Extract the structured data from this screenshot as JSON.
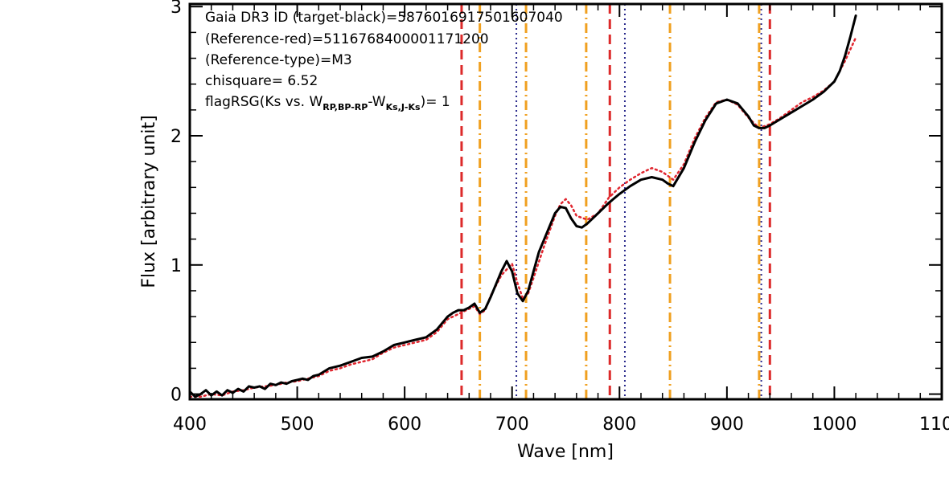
{
  "chart_data": {
    "type": "line",
    "xlabel": "Wave [nm]",
    "ylabel": "Flux [arbitrary unit]",
    "xlim": [
      400,
      1100
    ],
    "ylim": [
      -0.04,
      3.02
    ],
    "x_ticks": [
      400,
      500,
      600,
      700,
      800,
      900,
      1000,
      1100
    ],
    "x_tick_labels": [
      "400",
      "500",
      "600",
      "700",
      "800",
      "900",
      "1000",
      "1100"
    ],
    "y_ticks": [
      0,
      1,
      2,
      3
    ],
    "y_tick_labels": [
      "0",
      "1",
      "2",
      "3"
    ],
    "annotations": {
      "line1": "Gaia DR3 ID (target-black)=5876016917501607040",
      "line2": "(Reference-red)=5116768400001171200",
      "line3": "(Reference-type)=M3",
      "line4": "chisquare= 6.52",
      "line5_prefix": "flagRSG(Ks vs. W",
      "line5_sub1": "RP,BP-RP",
      "line5_mid": "-W",
      "line5_sub2": "Ks,J-Ks",
      "line5_suffix": ")= 1"
    },
    "series": [
      {
        "style": "solid",
        "color": "#000000",
        "x": [
          400,
          405,
          410,
          415,
          420,
          425,
          430,
          435,
          440,
          445,
          450,
          455,
          460,
          465,
          470,
          475,
          480,
          485,
          490,
          495,
          500,
          505,
          510,
          515,
          520,
          530,
          540,
          550,
          560,
          570,
          580,
          590,
          600,
          610,
          620,
          630,
          640,
          645,
          650,
          655,
          660,
          665,
          670,
          675,
          680,
          685,
          690,
          695,
          700,
          705,
          710,
          715,
          720,
          725,
          730,
          740,
          745,
          750,
          755,
          760,
          765,
          770,
          775,
          780,
          790,
          800,
          810,
          820,
          830,
          840,
          845,
          850,
          860,
          870,
          880,
          890,
          900,
          910,
          920,
          925,
          930,
          935,
          940,
          950,
          960,
          970,
          980,
          990,
          1000,
          1005,
          1010,
          1015,
          1020
        ],
        "y": [
          0.02,
          -0.02,
          0.0,
          0.03,
          -0.01,
          0.02,
          -0.01,
          0.03,
          0.01,
          0.04,
          0.02,
          0.06,
          0.05,
          0.06,
          0.04,
          0.08,
          0.07,
          0.09,
          0.08,
          0.1,
          0.11,
          0.12,
          0.11,
          0.14,
          0.15,
          0.2,
          0.22,
          0.25,
          0.28,
          0.29,
          0.33,
          0.38,
          0.4,
          0.42,
          0.44,
          0.5,
          0.6,
          0.63,
          0.65,
          0.65,
          0.67,
          0.7,
          0.63,
          0.66,
          0.75,
          0.85,
          0.95,
          1.03,
          0.95,
          0.78,
          0.72,
          0.8,
          0.95,
          1.1,
          1.2,
          1.4,
          1.45,
          1.44,
          1.36,
          1.3,
          1.29,
          1.32,
          1.36,
          1.4,
          1.48,
          1.55,
          1.61,
          1.66,
          1.68,
          1.66,
          1.63,
          1.61,
          1.75,
          1.95,
          2.12,
          2.25,
          2.28,
          2.25,
          2.15,
          2.08,
          2.06,
          2.06,
          2.08,
          2.13,
          2.18,
          2.23,
          2.28,
          2.34,
          2.42,
          2.5,
          2.62,
          2.77,
          2.93
        ]
      },
      {
        "style": "dotted",
        "color": "#e0262f",
        "x": [
          400,
          410,
          420,
          430,
          440,
          450,
          460,
          470,
          480,
          490,
          500,
          510,
          520,
          530,
          540,
          550,
          560,
          570,
          580,
          590,
          600,
          610,
          620,
          630,
          640,
          650,
          660,
          665,
          670,
          675,
          680,
          690,
          700,
          705,
          710,
          715,
          720,
          730,
          740,
          745,
          750,
          755,
          760,
          770,
          780,
          790,
          800,
          810,
          820,
          830,
          840,
          850,
          860,
          870,
          880,
          890,
          900,
          910,
          920,
          930,
          940,
          950,
          960,
          970,
          980,
          990,
          1000,
          1010,
          1020
        ],
        "y": [
          -0.02,
          -0.02,
          0.0,
          -0.01,
          0.02,
          0.03,
          0.05,
          0.06,
          0.07,
          0.09,
          0.1,
          0.12,
          0.14,
          0.18,
          0.2,
          0.23,
          0.25,
          0.27,
          0.32,
          0.36,
          0.38,
          0.4,
          0.42,
          0.48,
          0.58,
          0.62,
          0.66,
          0.68,
          0.62,
          0.65,
          0.76,
          0.92,
          1.01,
          0.86,
          0.74,
          0.78,
          0.9,
          1.15,
          1.38,
          1.47,
          1.51,
          1.46,
          1.38,
          1.35,
          1.4,
          1.52,
          1.6,
          1.66,
          1.71,
          1.75,
          1.72,
          1.66,
          1.78,
          1.98,
          2.14,
          2.26,
          2.28,
          2.24,
          2.14,
          2.06,
          2.09,
          2.14,
          2.2,
          2.26,
          2.3,
          2.35,
          2.42,
          2.58,
          2.76
        ]
      }
    ],
    "vlines": [
      {
        "x": 653,
        "style": "dashed",
        "color": "#dc2a2a"
      },
      {
        "x": 791,
        "style": "dashed",
        "color": "#dc2a2a"
      },
      {
        "x": 940,
        "style": "dashed",
        "color": "#dc2a2a"
      },
      {
        "x": 670,
        "style": "dashdot",
        "color": "#f0a020"
      },
      {
        "x": 713,
        "style": "dashdot",
        "color": "#f0a020"
      },
      {
        "x": 769,
        "style": "dashdot",
        "color": "#f0a020"
      },
      {
        "x": 847,
        "style": "dashdot",
        "color": "#f0a020"
      },
      {
        "x": 930,
        "style": "dashdot",
        "color": "#f0a020"
      },
      {
        "x": 704,
        "style": "dotted",
        "color": "#2a2a8c"
      },
      {
        "x": 805,
        "style": "dotted",
        "color": "#2a2a8c"
      },
      {
        "x": 932,
        "style": "dotted",
        "color": "#2a2a8c"
      }
    ]
  }
}
